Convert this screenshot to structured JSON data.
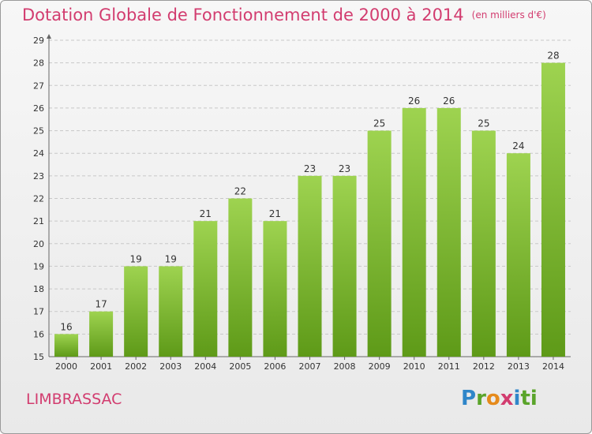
{
  "header": {
    "title": "Dotation Globale de Fonctionnement de 2000 à 2014",
    "unit": "(en milliers d'€)"
  },
  "footer": {
    "commune": "LIMBRASSAC",
    "logo_letters": [
      "P",
      "r",
      "o",
      "x",
      "i",
      "ti"
    ]
  },
  "colors": {
    "title": "#d23c6f",
    "bar_top": "#9ed350",
    "bar_bottom": "#5e9a18",
    "grid": "#c8c8c8"
  },
  "chart_data": {
    "type": "bar",
    "title": "Dotation Globale de Fonctionnement de 2000 à 2014",
    "subtitle": "(en milliers d'€)",
    "categories": [
      "2000",
      "2001",
      "2002",
      "2003",
      "2004",
      "2005",
      "2006",
      "2007",
      "2008",
      "2009",
      "2010",
      "2011",
      "2012",
      "2013",
      "2014"
    ],
    "values": [
      16,
      17,
      19,
      19,
      21,
      22,
      21,
      23,
      23,
      25,
      26,
      26,
      25,
      24,
      28
    ],
    "ylim": [
      15,
      29
    ],
    "yticks": [
      15,
      16,
      17,
      18,
      19,
      20,
      21,
      22,
      23,
      24,
      25,
      26,
      27,
      28,
      29
    ],
    "grid": "horizontal dashed",
    "xlabel": "",
    "ylabel": ""
  }
}
